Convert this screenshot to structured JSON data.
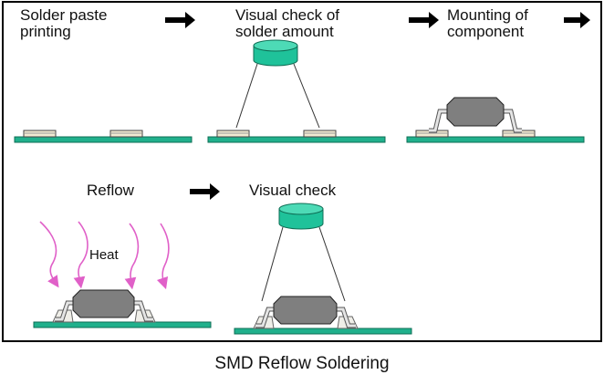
{
  "steps": [
    {
      "label_line1": "Solder paste",
      "label_line2": "printing"
    },
    {
      "label_line1": "Visual check of",
      "label_line2": "solder amount"
    },
    {
      "label_line1": "Mounting of",
      "label_line2": "component"
    },
    {
      "label_line1": "Reflow"
    },
    {
      "label_line1": "Visual check"
    }
  ],
  "heat_label": "Heat",
  "caption": "SMD Reflow Soldering",
  "colors": {
    "board": "#20b08c",
    "board_edge": "#0e6e55",
    "paste": "#f2ead2",
    "component": "#7f7f7f",
    "camera": "#1fc29a",
    "heat_arrow": "#e060c8",
    "lead": "#d8d8d8"
  }
}
